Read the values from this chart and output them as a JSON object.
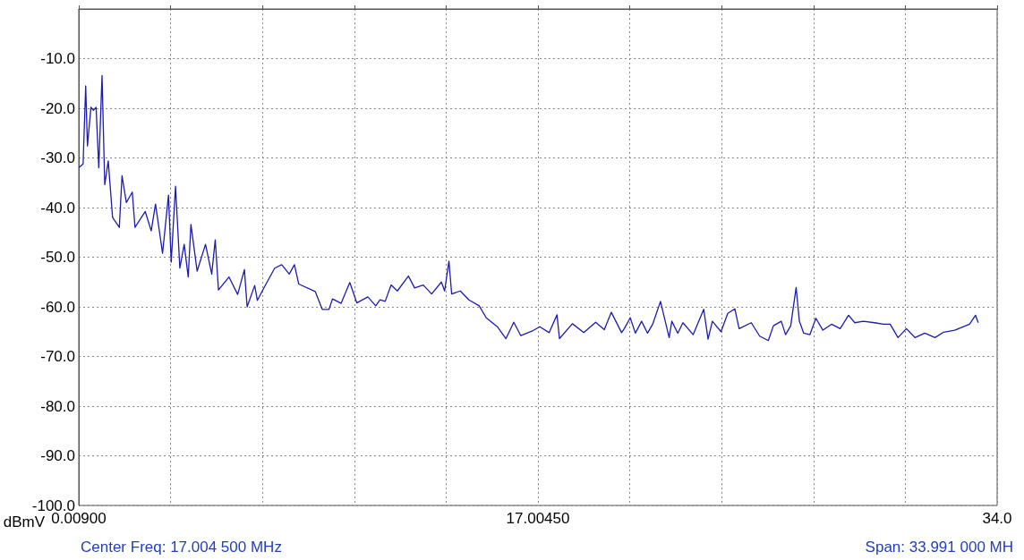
{
  "chart_data": {
    "type": "line",
    "ylabel": "dBmV",
    "annotations": [
      "Center Freq: 17.004 500 MHz",
      "Span: 33.991 000 MH"
    ],
    "xlim": [
      0.009,
      34.0
    ],
    "ylim": [
      -100,
      0
    ],
    "xticks": [
      {
        "value": 0.009,
        "label": "0.00900"
      },
      {
        "value": 3.4081,
        "label": null
      },
      {
        "value": 6.8072,
        "label": null
      },
      {
        "value": 10.2063,
        "label": null
      },
      {
        "value": 13.6054,
        "label": null
      },
      {
        "value": 17.0045,
        "label": "17.00450"
      },
      {
        "value": 20.4036,
        "label": null
      },
      {
        "value": 23.8027,
        "label": null
      },
      {
        "value": 27.2018,
        "label": null
      },
      {
        "value": 30.6009,
        "label": null
      },
      {
        "value": 34.0,
        "label": "34.0"
      }
    ],
    "yticks": [
      {
        "value": -100,
        "label": "-100.0"
      },
      {
        "value": -90,
        "label": "-90.0"
      },
      {
        "value": -80,
        "label": "-80.0"
      },
      {
        "value": -70,
        "label": "-70.0"
      },
      {
        "value": -60,
        "label": "-60.0"
      },
      {
        "value": -50,
        "label": "-50.0"
      },
      {
        "value": -40,
        "label": "-40.0"
      },
      {
        "value": -30,
        "label": "-30.0"
      },
      {
        "value": -20,
        "label": "-20.0"
      },
      {
        "value": -10,
        "label": "-10.0"
      },
      {
        "value": 0,
        "label": null
      }
    ],
    "grid": true,
    "marker": "none",
    "line_style": "solid",
    "series": [
      {
        "color": "#1c1cb0",
        "x": [
          0.009,
          0.169,
          0.265,
          0.33,
          0.46,
          0.55,
          0.65,
          0.75,
          0.87,
          0.97,
          1.1,
          1.26,
          1.51,
          1.61,
          1.77,
          1.99,
          2.09,
          2.47,
          2.69,
          2.85,
          3.11,
          3.33,
          3.43,
          3.59,
          3.75,
          3.91,
          4.06,
          4.16,
          4.39,
          4.7,
          4.93,
          5.06,
          5.18,
          5.57,
          5.89,
          6.14,
          6.24,
          6.52,
          6.62,
          6.85,
          7.26,
          7.52,
          7.8,
          7.99,
          8.15,
          8.76,
          9.02,
          9.27,
          9.4,
          9.72,
          10.04,
          10.3,
          10.71,
          11.0,
          11.16,
          11.35,
          11.57,
          11.8,
          12.21,
          12.44,
          12.76,
          13.07,
          13.43,
          13.55,
          13.71,
          13.81,
          14.13,
          14.45,
          14.83,
          15.09,
          15.5,
          15.82,
          16.11,
          16.37,
          16.78,
          17.07,
          17.42,
          17.71,
          17.8,
          18.28,
          18.7,
          19.14,
          19.46,
          19.72,
          20.1,
          20.2,
          20.42,
          20.61,
          20.84,
          21.06,
          21.25,
          21.54,
          21.86,
          21.96,
          22.18,
          22.37,
          22.75,
          23.14,
          23.3,
          23.46,
          23.78,
          24.03,
          24.29,
          24.45,
          24.9,
          25.21,
          25.53,
          25.72,
          26.01,
          26.17,
          26.36,
          26.56,
          26.68,
          26.84,
          27.07,
          27.29,
          27.55,
          27.87,
          28.19,
          28.5,
          28.73,
          29.05,
          29.46,
          29.78,
          30.04,
          30.33,
          30.64,
          30.96,
          31.32,
          31.7,
          32.02,
          32.43,
          32.98,
          33.2,
          33.3
        ],
        "values": [
          -32,
          -31.2,
          -15.5,
          -27.6,
          -19.8,
          -20.4,
          -19.8,
          -32,
          -13.4,
          -35.4,
          -30.6,
          -42,
          -44,
          -33.6,
          -39,
          -36.9,
          -44,
          -40.8,
          -44.7,
          -39.3,
          -49.2,
          -37.5,
          -51,
          -35.7,
          -52.2,
          -47.4,
          -54,
          -43.4,
          -52.8,
          -47.4,
          -53.4,
          -46.5,
          -56.6,
          -54,
          -57.5,
          -52.5,
          -60,
          -55.7,
          -58.7,
          -56.3,
          -52.2,
          -51.5,
          -53.4,
          -51.5,
          -55.4,
          -56.9,
          -60.5,
          -60.5,
          -58.4,
          -59.3,
          -55.1,
          -59.2,
          -58,
          -59.8,
          -58.6,
          -58.9,
          -55.6,
          -56.8,
          -53.8,
          -56.2,
          -55.6,
          -57.4,
          -55,
          -56.8,
          -50.8,
          -57.4,
          -56.8,
          -58.6,
          -59.8,
          -62.2,
          -64,
          -66.4,
          -63.1,
          -65.8,
          -64.9,
          -64,
          -65.2,
          -61.6,
          -66.4,
          -63.4,
          -65.2,
          -63.1,
          -64.6,
          -61.1,
          -65.2,
          -64.4,
          -62.2,
          -65.3,
          -62.9,
          -65.3,
          -63.5,
          -58.9,
          -66.2,
          -62.9,
          -65.3,
          -63.2,
          -65.6,
          -60.5,
          -66.5,
          -62.9,
          -65,
          -61.3,
          -60.4,
          -64.4,
          -63.2,
          -65.9,
          -66.8,
          -63.8,
          -62.9,
          -65.6,
          -63.8,
          -56.1,
          -62.9,
          -65.3,
          -65.6,
          -62.3,
          -64.7,
          -63.5,
          -64.4,
          -61.7,
          -63.2,
          -62.9,
          -63.2,
          -63.5,
          -63.5,
          -66.2,
          -64.4,
          -66.2,
          -65.3,
          -66.2,
          -65.1,
          -64.7,
          -63.5,
          -61.7,
          -63.2
        ]
      }
    ]
  }
}
